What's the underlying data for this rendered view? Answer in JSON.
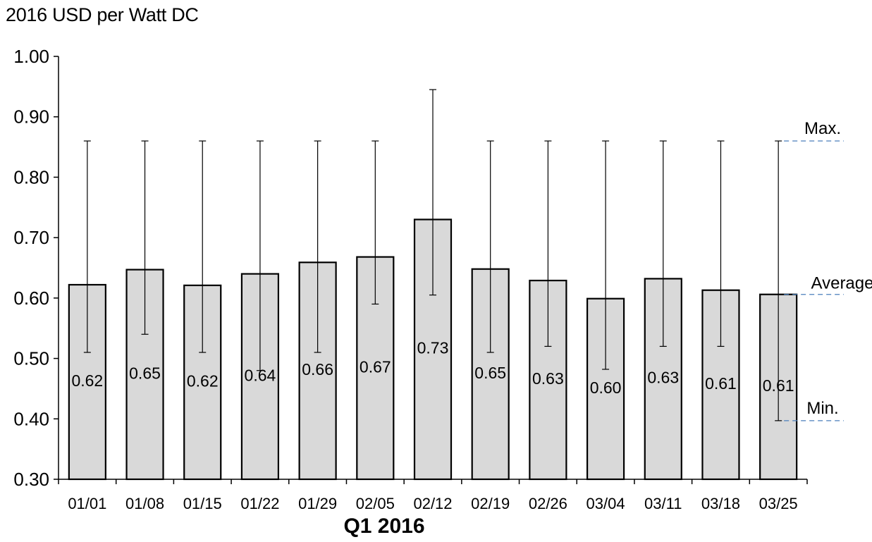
{
  "chart_data": {
    "type": "bar",
    "ylabel": "2016 USD per Watt DC",
    "xlabel": "Q1 2016",
    "ylim": [
      0.3,
      1.0
    ],
    "y_ticks": [
      "0.30",
      "0.40",
      "0.50",
      "0.60",
      "0.70",
      "0.80",
      "0.90",
      "1.00"
    ],
    "categories": [
      "01/01",
      "01/08",
      "01/15",
      "01/22",
      "01/29",
      "02/05",
      "02/12",
      "02/19",
      "02/26",
      "03/04",
      "03/11",
      "03/18",
      "03/25"
    ],
    "values": [
      0.622,
      0.647,
      0.621,
      0.64,
      0.659,
      0.668,
      0.73,
      0.648,
      0.629,
      0.599,
      0.632,
      0.613,
      0.606
    ],
    "value_labels": [
      "0.62",
      "0.65",
      "0.62",
      "0.64",
      "0.66",
      "0.67",
      "0.73",
      "0.65",
      "0.63",
      "0.60",
      "0.63",
      "0.61",
      "0.61"
    ],
    "max": [
      0.86,
      0.86,
      0.86,
      0.86,
      0.86,
      0.86,
      0.945,
      0.86,
      0.86,
      0.86,
      0.86,
      0.86,
      0.86
    ],
    "min": [
      0.51,
      0.54,
      0.51,
      0.48,
      0.51,
      0.59,
      0.605,
      0.51,
      0.52,
      0.482,
      0.52,
      0.52,
      0.397
    ],
    "annotations": [
      "Max.",
      "Average",
      "Min."
    ],
    "bar_color": "#d9d9d9",
    "annotation_line_color": "#4a7ebb",
    "grid": false,
    "legend": "none"
  }
}
